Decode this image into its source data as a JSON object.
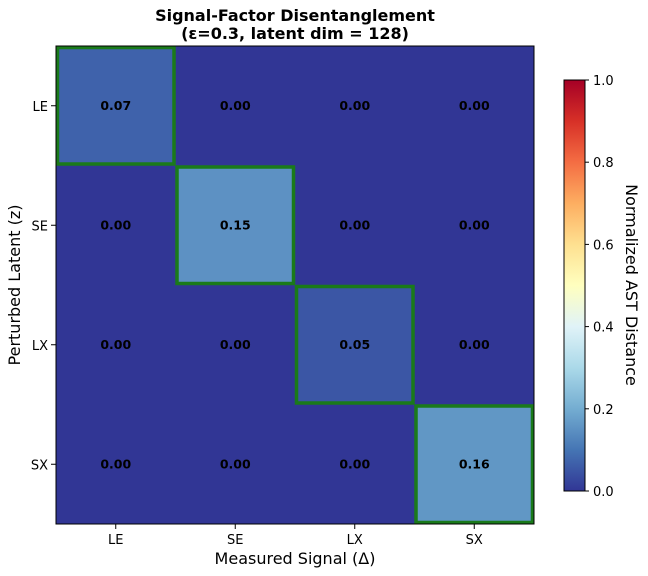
{
  "chart_data": {
    "type": "heatmap",
    "title": "Signal-Factor Disentanglement",
    "subtitle": "(ε=0.3, latent dim = 128)",
    "xlabel": "Measured Signal (Δ)",
    "ylabel": "Perturbed Latent (z)",
    "x_categories": [
      "LE",
      "SE",
      "LX",
      "SX"
    ],
    "y_categories": [
      "LE",
      "SE",
      "LX",
      "SX"
    ],
    "values": [
      [
        0.07,
        0.0,
        0.0,
        0.0
      ],
      [
        0.0,
        0.15,
        0.0,
        0.0
      ],
      [
        0.0,
        0.0,
        0.05,
        0.0
      ],
      [
        0.0,
        0.0,
        0.0,
        0.16
      ]
    ],
    "value_labels": [
      [
        "0.07",
        "0.00",
        "0.00",
        "0.00"
      ],
      [
        "0.00",
        "0.15",
        "0.00",
        "0.00"
      ],
      [
        "0.00",
        "0.00",
        "0.05",
        "0.00"
      ],
      [
        "0.00",
        "0.00",
        "0.00",
        "0.16"
      ]
    ],
    "highlight": "diagonal",
    "highlight_color": "#1a7a1a",
    "colormap": "RdYlBu_r",
    "clim": [
      0.0,
      1.0
    ],
    "colorbar": {
      "label": "Normalized AST Distance",
      "ticks": [
        "0.0",
        "0.2",
        "0.4",
        "0.6",
        "0.8",
        "1.0"
      ]
    }
  }
}
